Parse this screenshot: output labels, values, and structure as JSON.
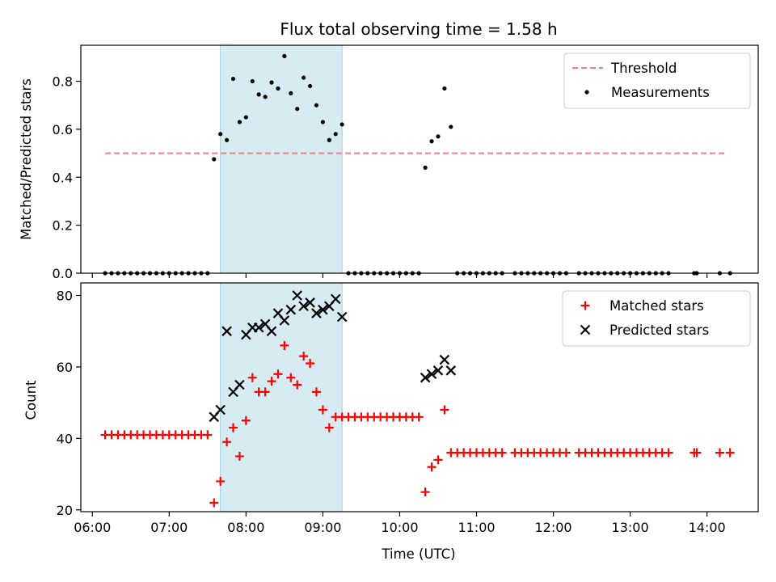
{
  "chart_data": [
    {
      "panel": "top",
      "type": "scatter",
      "title": "Flux total observing time = 1.58 h",
      "xlabel": "",
      "ylabel": "Matched/Predicted stars",
      "xlim": [
        "05:51",
        "14:40"
      ],
      "ylim": [
        0,
        0.95
      ],
      "yticks": [
        "0.0",
        "0.2",
        "0.4",
        "0.6",
        "0.8"
      ],
      "grid": false,
      "legend_position": "top-right",
      "highlight_span": [
        "07:40",
        "09:15"
      ],
      "series": [
        {
          "name": "Threshold",
          "kind": "line",
          "style": "dashed",
          "color": "#f08080",
          "x": [
            "06:10",
            "14:14"
          ],
          "y": [
            0.5,
            0.5
          ]
        },
        {
          "name": "Measurements",
          "kind": "scatter",
          "marker": "dot",
          "color": "#000000",
          "x": [
            "06:10",
            "06:15",
            "06:20",
            "06:25",
            "06:30",
            "06:35",
            "06:40",
            "06:45",
            "06:50",
            "06:55",
            "07:00",
            "07:05",
            "07:10",
            "07:15",
            "07:20",
            "07:25",
            "07:30",
            "07:35",
            "07:40",
            "07:45",
            "07:50",
            "07:55",
            "08:00",
            "08:05",
            "08:10",
            "08:15",
            "08:20",
            "08:25",
            "08:30",
            "08:35",
            "08:40",
            "08:45",
            "08:50",
            "08:55",
            "09:00",
            "09:05",
            "09:10",
            "09:15",
            "09:20",
            "09:25",
            "09:30",
            "09:35",
            "09:40",
            "09:45",
            "09:50",
            "09:55",
            "10:00",
            "10:05",
            "10:10",
            "10:15",
            "10:20",
            "10:25",
            "10:30",
            "10:35",
            "10:40",
            "10:45",
            "10:50",
            "10:55",
            "11:00",
            "11:05",
            "11:10",
            "11:15",
            "11:20",
            "11:30",
            "11:35",
            "11:40",
            "11:45",
            "11:50",
            "11:55",
            "12:00",
            "12:05",
            "12:10",
            "12:20",
            "12:25",
            "12:30",
            "12:35",
            "12:40",
            "12:45",
            "12:50",
            "12:55",
            "13:00",
            "13:05",
            "13:10",
            "13:15",
            "13:20",
            "13:25",
            "13:30",
            "13:50",
            "13:52",
            "14:10",
            "14:18"
          ],
          "y": [
            0,
            0,
            0,
            0,
            0,
            0,
            0,
            0,
            0,
            0,
            0,
            0,
            0,
            0,
            0,
            0,
            0,
            0.475,
            0.58,
            0.555,
            0.81,
            0.63,
            0.65,
            0.8,
            0.745,
            0.735,
            0.795,
            0.77,
            0.905,
            0.75,
            0.685,
            0.815,
            0.78,
            0.7,
            0.63,
            0.555,
            0.58,
            0.62,
            0,
            0,
            0,
            0,
            0,
            0,
            0,
            0,
            0,
            0,
            0,
            0,
            0.44,
            0.55,
            0.57,
            0.77,
            0.61,
            0,
            0,
            0,
            0,
            0,
            0,
            0,
            0,
            0,
            0,
            0,
            0,
            0,
            0,
            0,
            0,
            0,
            0,
            0,
            0,
            0,
            0,
            0,
            0,
            0,
            0,
            0,
            0,
            0,
            0,
            0,
            0,
            0,
            0,
            0,
            0
          ]
        }
      ]
    },
    {
      "panel": "bottom",
      "type": "scatter",
      "title": "",
      "xlabel": "Time (UTC)",
      "ylabel": "Count",
      "xlim": [
        "05:51",
        "14:40"
      ],
      "ylim": [
        19.5,
        83.5
      ],
      "yticks": [
        "20",
        "40",
        "60",
        "80"
      ],
      "xticks": [
        "06:00",
        "07:00",
        "08:00",
        "09:00",
        "10:00",
        "11:00",
        "12:00",
        "13:00",
        "14:00"
      ],
      "grid": false,
      "legend_position": "top-right",
      "highlight_span": [
        "07:40",
        "09:15"
      ],
      "series": [
        {
          "name": "Matched stars",
          "kind": "scatter",
          "marker": "plus",
          "color": "#ff0000",
          "x": [
            "06:10",
            "06:15",
            "06:20",
            "06:25",
            "06:30",
            "06:35",
            "06:40",
            "06:45",
            "06:50",
            "06:55",
            "07:00",
            "07:05",
            "07:10",
            "07:15",
            "07:20",
            "07:25",
            "07:30",
            "07:35",
            "07:40",
            "07:45",
            "07:50",
            "07:55",
            "08:00",
            "08:05",
            "08:10",
            "08:15",
            "08:20",
            "08:25",
            "08:30",
            "08:35",
            "08:40",
            "08:45",
            "08:50",
            "08:55",
            "09:00",
            "09:05",
            "09:10",
            "09:15",
            "09:20",
            "09:25",
            "09:30",
            "09:35",
            "09:40",
            "09:45",
            "09:50",
            "09:55",
            "10:00",
            "10:05",
            "10:10",
            "10:15",
            "10:20",
            "10:25",
            "10:30",
            "10:35",
            "10:40",
            "10:45",
            "10:50",
            "10:55",
            "11:00",
            "11:05",
            "11:10",
            "11:15",
            "11:20",
            "11:30",
            "11:35",
            "11:40",
            "11:45",
            "11:50",
            "11:55",
            "12:00",
            "12:05",
            "12:10",
            "12:20",
            "12:25",
            "12:30",
            "12:35",
            "12:40",
            "12:45",
            "12:50",
            "12:55",
            "13:00",
            "13:05",
            "13:10",
            "13:15",
            "13:20",
            "13:25",
            "13:30",
            "13:50",
            "13:52",
            "14:10",
            "14:18"
          ],
          "y": [
            41,
            41,
            41,
            41,
            41,
            41,
            41,
            41,
            41,
            41,
            41,
            41,
            41,
            41,
            41,
            41,
            41,
            22,
            28,
            39,
            43,
            35,
            45,
            57,
            53,
            53,
            56,
            58,
            66,
            57,
            55,
            63,
            61,
            53,
            48,
            43,
            46,
            46,
            46,
            46,
            46,
            46,
            46,
            46,
            46,
            46,
            46,
            46,
            46,
            46,
            25,
            32,
            34,
            48,
            36,
            36,
            36,
            36,
            36,
            36,
            36,
            36,
            36,
            36,
            36,
            36,
            36,
            36,
            36,
            36,
            36,
            36,
            36,
            36,
            36,
            36,
            36,
            36,
            36,
            36,
            36,
            36,
            36,
            36,
            36,
            36,
            36,
            36,
            36,
            36,
            36
          ]
        },
        {
          "name": "Predicted stars",
          "kind": "scatter",
          "marker": "x",
          "color": "#000000",
          "x": [
            "07:35",
            "07:40",
            "07:45",
            "07:50",
            "07:55",
            "08:00",
            "08:05",
            "08:10",
            "08:15",
            "08:20",
            "08:25",
            "08:30",
            "08:35",
            "08:40",
            "08:45",
            "08:50",
            "08:55",
            "09:00",
            "09:05",
            "09:10",
            "09:15",
            "10:20",
            "10:25",
            "10:30",
            "10:35",
            "10:40"
          ],
          "y": [
            46,
            48,
            70,
            53,
            55,
            69,
            71,
            71,
            72,
            70,
            75,
            73,
            76,
            80,
            77,
            78,
            75,
            76,
            77,
            79,
            74,
            57,
            58,
            59,
            62,
            59
          ]
        }
      ]
    }
  ]
}
